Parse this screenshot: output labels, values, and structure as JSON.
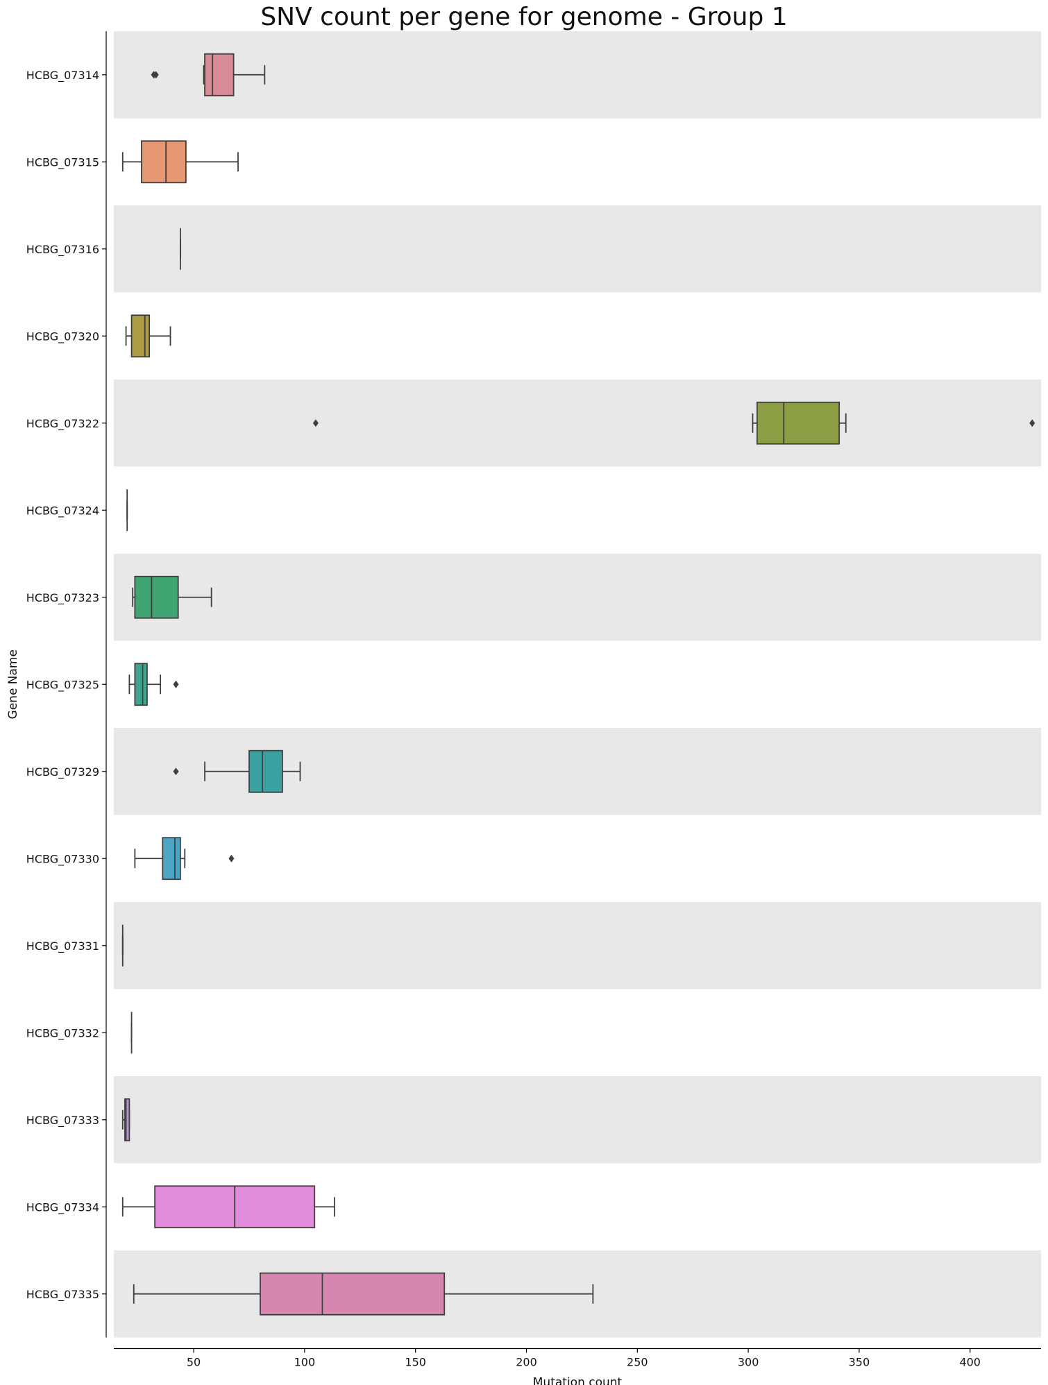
{
  "chart_data": {
    "type": "boxplot",
    "orientation": "horizontal",
    "title": "SNV count per gene for genome - Group 1",
    "xlabel": "Mutation count",
    "ylabel": "Gene Name",
    "xlim": [
      14,
      432
    ],
    "xticks": [
      50,
      100,
      150,
      200,
      250,
      300,
      350,
      400
    ],
    "grid": false,
    "band_colors": [
      "#e8e8e8",
      "#ffffff"
    ],
    "categories": [
      "HCBG_07314",
      "HCBG_07315",
      "HCBG_07316",
      "HCBG_07320",
      "HCBG_07322",
      "HCBG_07324",
      "HCBG_07323",
      "HCBG_07325",
      "HCBG_07329",
      "HCBG_07330",
      "HCBG_07331",
      "HCBG_07332",
      "HCBG_07333",
      "HCBG_07334",
      "HCBG_07335"
    ],
    "boxes": [
      {
        "gene": "HCBG_07314",
        "whisker_low": 54.5,
        "q1": 55,
        "median": 58.5,
        "q3": 68,
        "whisker_high": 82,
        "outliers": [
          32,
          33
        ],
        "color": "#d98b98"
      },
      {
        "gene": "HCBG_07315",
        "whisker_low": 18,
        "q1": 26.5,
        "median": 37.5,
        "q3": 46.5,
        "whisker_high": 70,
        "outliers": [],
        "color": "#e59872"
      },
      {
        "gene": "HCBG_07316",
        "whisker_low": 44,
        "q1": 44,
        "median": 44,
        "q3": 44,
        "whisker_high": 44,
        "outliers": [],
        "color": "#c7a266"
      },
      {
        "gene": "HCBG_07320",
        "whisker_low": 19.5,
        "q1": 22,
        "median": 28,
        "q3": 30,
        "whisker_high": 39.5,
        "outliers": [],
        "color": "#ad9e45"
      },
      {
        "gene": "HCBG_07322",
        "whisker_low": 302,
        "q1": 304,
        "median": 316,
        "q3": 341,
        "whisker_high": 344,
        "outliers": [
          105,
          428
        ],
        "color": "#8c9e43"
      },
      {
        "gene": "HCBG_07324",
        "whisker_low": 20,
        "q1": 20,
        "median": 20,
        "q3": 20,
        "whisker_high": 20,
        "outliers": [],
        "color": "#6aa85b"
      },
      {
        "gene": "HCBG_07323",
        "whisker_low": 22.5,
        "q1": 23.5,
        "median": 31,
        "q3": 43,
        "whisker_high": 58,
        "outliers": [],
        "color": "#3fa573"
      },
      {
        "gene": "HCBG_07325",
        "whisker_low": 21,
        "q1": 23.5,
        "median": 27,
        "q3": 29,
        "whisker_high": 35,
        "outliers": [
          42
        ],
        "color": "#3fa58e"
      },
      {
        "gene": "HCBG_07329",
        "whisker_low": 55,
        "q1": 75,
        "median": 81,
        "q3": 90,
        "whisker_high": 98,
        "outliers": [
          42
        ],
        "color": "#3ba1a0"
      },
      {
        "gene": "HCBG_07330",
        "whisker_low": 23.5,
        "q1": 36,
        "median": 41.5,
        "q3": 44,
        "whisker_high": 46,
        "outliers": [
          67
        ],
        "color": "#4ba6c4"
      },
      {
        "gene": "HCBG_07331",
        "whisker_low": 18,
        "q1": 18,
        "median": 18,
        "q3": 18,
        "whisker_high": 18,
        "outliers": [],
        "color": "#67a7d4"
      },
      {
        "gene": "HCBG_07332",
        "whisker_low": 22,
        "q1": 22,
        "median": 22,
        "q3": 22,
        "whisker_high": 22,
        "outliers": [],
        "color": "#8e9fd6"
      },
      {
        "gene": "HCBG_07333",
        "whisker_low": 18,
        "q1": 19,
        "median": 19.5,
        "q3": 21,
        "whisker_high": 21,
        "outliers": [],
        "color": "#b49ad4"
      },
      {
        "gene": "HCBG_07334",
        "whisker_low": 18,
        "q1": 32.5,
        "median": 68.5,
        "q3": 104.5,
        "whisker_high": 113.5,
        "outliers": [],
        "color": "#e48cdc"
      },
      {
        "gene": "HCBG_07335",
        "whisker_low": 23,
        "q1": 80,
        "median": 108,
        "q3": 163,
        "whisker_high": 230,
        "outliers": [],
        "color": "#d786b0"
      }
    ]
  }
}
